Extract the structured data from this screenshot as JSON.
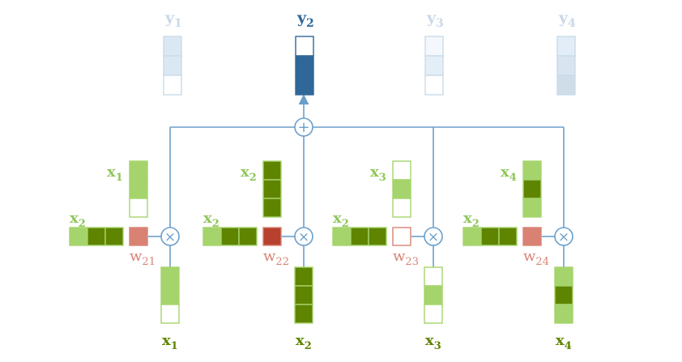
{
  "colors": {
    "line": "#6a9ecb",
    "outputs": [
      "#dbe8f4",
      "#2f6898",
      "#e4eef7",
      "#cfdde9"
    ],
    "output_borders": [
      "#c9dbea",
      "#2f6898",
      "#c9dbea",
      "#c9dbea"
    ],
    "output_labels": [
      "#c9d9e8",
      "#2f6898",
      "#c9d9e8",
      "#c9d9e8"
    ],
    "green_dark": "#5f8400",
    "green_light": "#a6d46c",
    "green_label_dark": "#5f8400",
    "green_label_light": "#8fc65a",
    "weights": [
      "#d98274",
      "#b5412e",
      "#ffffff",
      "#d98274"
    ],
    "weight_border": "#d98274",
    "weight_label": "#d98274"
  },
  "labels": {
    "outputs": [
      {
        "base": "y",
        "sub": "1"
      },
      {
        "base": "y",
        "sub": "2"
      },
      {
        "base": "y",
        "sub": "3"
      },
      {
        "base": "y",
        "sub": "4"
      }
    ],
    "keys": [
      {
        "base": "x",
        "sub": "1"
      },
      {
        "base": "x",
        "sub": "2"
      },
      {
        "base": "x",
        "sub": "3"
      },
      {
        "base": "x",
        "sub": "4"
      }
    ],
    "query": [
      {
        "base": "x",
        "sub": "2"
      },
      {
        "base": "x",
        "sub": "2"
      },
      {
        "base": "x",
        "sub": "2"
      },
      {
        "base": "x",
        "sub": "2"
      }
    ],
    "weights": [
      {
        "base": "w",
        "sub": "21"
      },
      {
        "base": "w",
        "sub": "22"
      },
      {
        "base": "w",
        "sub": "23"
      },
      {
        "base": "w",
        "sub": "24"
      }
    ],
    "values": [
      {
        "base": "x",
        "sub": "1"
      },
      {
        "base": "x",
        "sub": "2"
      },
      {
        "base": "x",
        "sub": "3"
      },
      {
        "base": "x",
        "sub": "4"
      }
    ],
    "sum_symbol": "+",
    "mult_symbol": "×"
  },
  "vectors": {
    "x1": [
      "light",
      "light",
      "empty"
    ],
    "x2": [
      "dark",
      "dark",
      "dark"
    ],
    "x3": [
      "empty",
      "light",
      "empty"
    ],
    "x4": [
      "light",
      "dark",
      "light"
    ],
    "query": [
      "light",
      "dark",
      "dark"
    ],
    "outputs": [
      [
        "white",
        "fill",
        "empty"
      ],
      [
        "white",
        "fill",
        "fill"
      ],
      [
        "white",
        "fill",
        "empty"
      ],
      [
        "fill",
        "fill",
        "fill"
      ]
    ]
  }
}
